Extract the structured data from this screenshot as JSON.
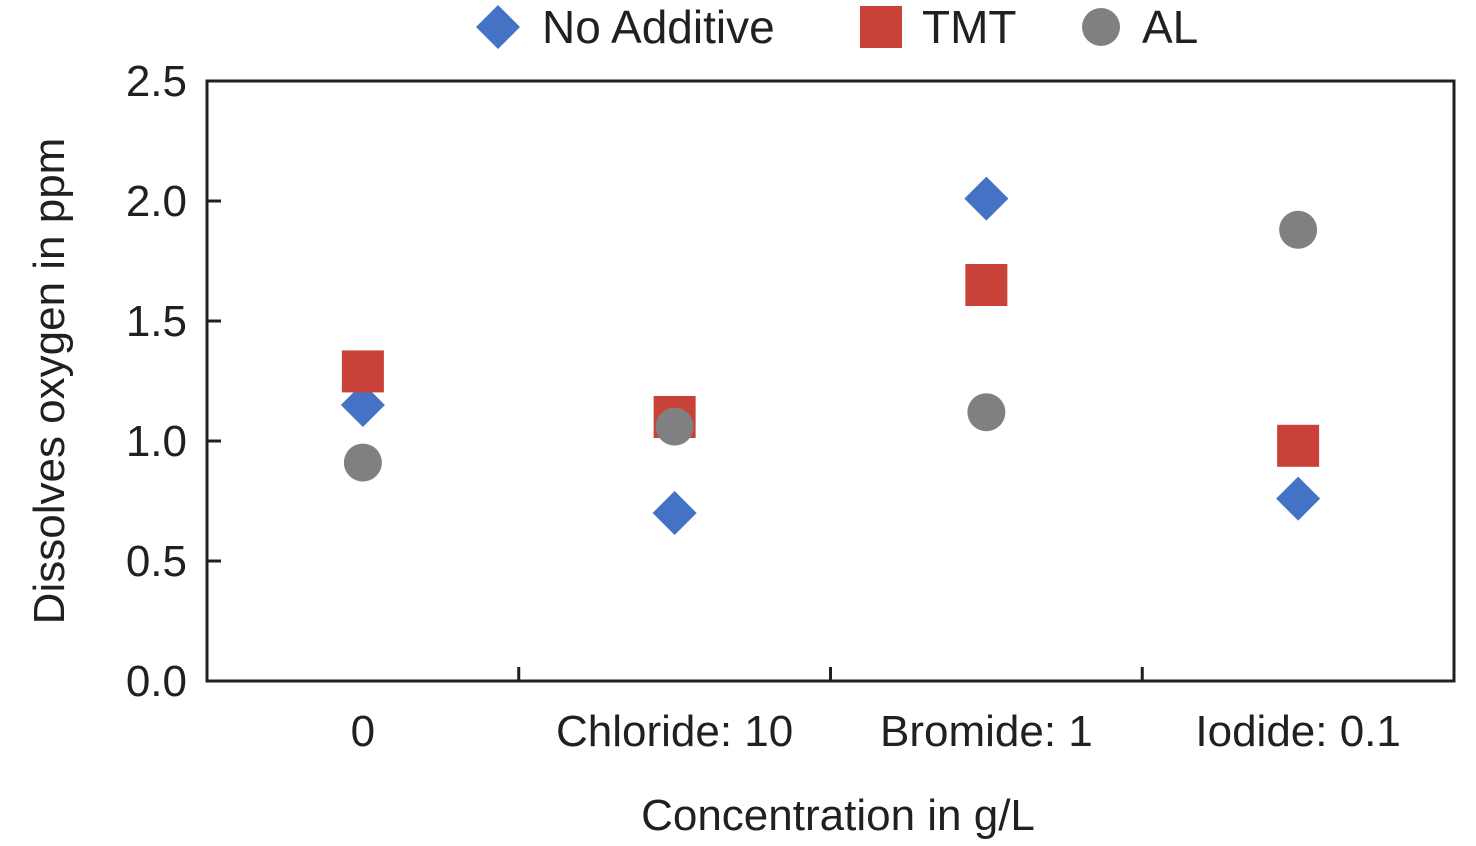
{
  "chart_data": {
    "type": "scatter",
    "title": "",
    "xlabel": "Concentration in g/L",
    "ylabel": "Dissolves oxygen in ppm",
    "categories": [
      "0",
      "Chloride: 10",
      "Bromide: 1",
      "Iodide: 0.1"
    ],
    "ylim": [
      0,
      2.5
    ],
    "yticks": [
      "0.0",
      "0.5",
      "1.0",
      "1.5",
      "2.0",
      "2.5"
    ],
    "grid": false,
    "legend_position": "top",
    "series": [
      {
        "name": "No Additive",
        "marker": "diamond",
        "color": "#4472c4",
        "values": [
          1.15,
          0.7,
          2.01,
          0.76
        ]
      },
      {
        "name": "TMT",
        "marker": "square",
        "color": "#c9423a",
        "values": [
          1.29,
          1.1,
          1.65,
          0.98
        ]
      },
      {
        "name": "AL",
        "marker": "circle",
        "color": "#808080",
        "values": [
          0.91,
          1.06,
          1.12,
          1.88
        ]
      }
    ]
  }
}
